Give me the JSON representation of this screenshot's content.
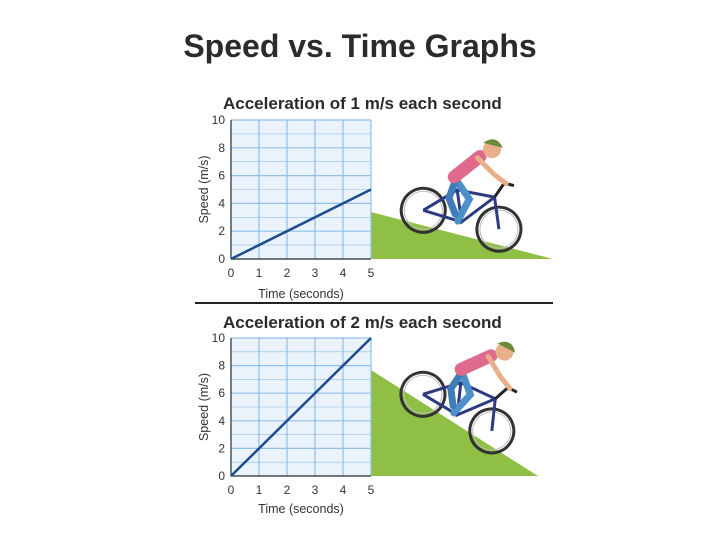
{
  "page": {
    "title": "Speed vs. Time Graphs",
    "colors": {
      "grid_bg": "#eaf2fb",
      "grid_line": "#8fc0ea",
      "line": "#1f4c8f",
      "hill": "#8fbf45"
    }
  },
  "chart_data": [
    {
      "type": "line",
      "title": "Acceleration of 1 m/s each second",
      "xlabel": "Time (seconds)",
      "ylabel": "Speed (m/s)",
      "xlim": [
        0,
        5
      ],
      "ylim": [
        0,
        10
      ],
      "x_ticks": [
        0,
        1,
        2,
        3,
        4,
        5
      ],
      "y_ticks": [
        0,
        2,
        4,
        6,
        8,
        10
      ],
      "x": [
        0,
        5
      ],
      "y": [
        0,
        5
      ],
      "grid": true
    },
    {
      "type": "line",
      "title": "Acceleration of 2 m/s each second",
      "xlabel": "Time (seconds)",
      "ylabel": "Speed (m/s)",
      "xlim": [
        0,
        5
      ],
      "ylim": [
        0,
        10
      ],
      "x_ticks": [
        0,
        1,
        2,
        3,
        4,
        5
      ],
      "y_ticks": [
        0,
        2,
        4,
        6,
        8,
        10
      ],
      "x": [
        0,
        5
      ],
      "y": [
        0,
        10
      ],
      "grid": true
    }
  ],
  "illustration": {
    "icons": [
      "hill-slope-gentle",
      "cyclist-icon",
      "hill-slope-steep"
    ]
  }
}
